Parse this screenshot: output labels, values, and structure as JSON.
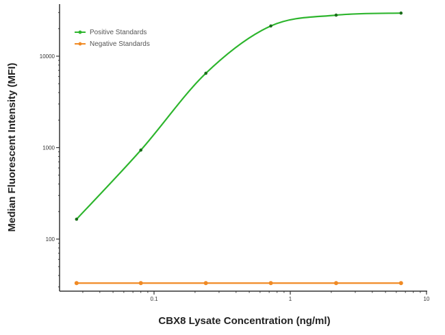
{
  "chart_data": {
    "type": "line",
    "title": "",
    "xlabel": "CBX8 Lysate Concentration (ng/ml)",
    "ylabel": "Median  Fluorescent Intensity  (MFI)",
    "xscale": "log",
    "yscale": "log",
    "xlim": [
      0.02,
      10
    ],
    "ylim": [
      20,
      30000
    ],
    "x_ticks": [
      {
        "value": 0.1,
        "label": "0.1"
      },
      {
        "value": 1,
        "label": "1"
      },
      {
        "value": 10,
        "label": "10"
      }
    ],
    "y_ticks": [
      {
        "value": 100,
        "label": "100"
      },
      {
        "value": 1000,
        "label": "1000"
      },
      {
        "value": 10000,
        "label": "10000"
      }
    ],
    "grid": false,
    "legend_position": "upper-left",
    "series": [
      {
        "name": "Positive Standards",
        "color": "#2db52d",
        "x": [
          0.027,
          0.08,
          0.24,
          0.72,
          2.17,
          6.5
        ],
        "values": [
          165,
          940,
          6500,
          21400,
          28100,
          29600
        ],
        "fit": "4PL curve"
      },
      {
        "name": "Negative Standards",
        "color": "#f08a24",
        "x": [
          0.027,
          0.08,
          0.24,
          0.72,
          2.17,
          6.5
        ],
        "values": [
          33,
          33,
          33,
          33,
          33,
          33
        ]
      }
    ]
  },
  "legend": {
    "items": [
      {
        "label": "Positive Standards",
        "color": "#2db52d"
      },
      {
        "label": "Negative Standards",
        "color": "#f08a24"
      }
    ]
  },
  "axes": {
    "x_title": "CBX8 Lysate Concentration (ng/ml)",
    "y_title": "Median  Fluorescent Intensity  (MFI)"
  }
}
